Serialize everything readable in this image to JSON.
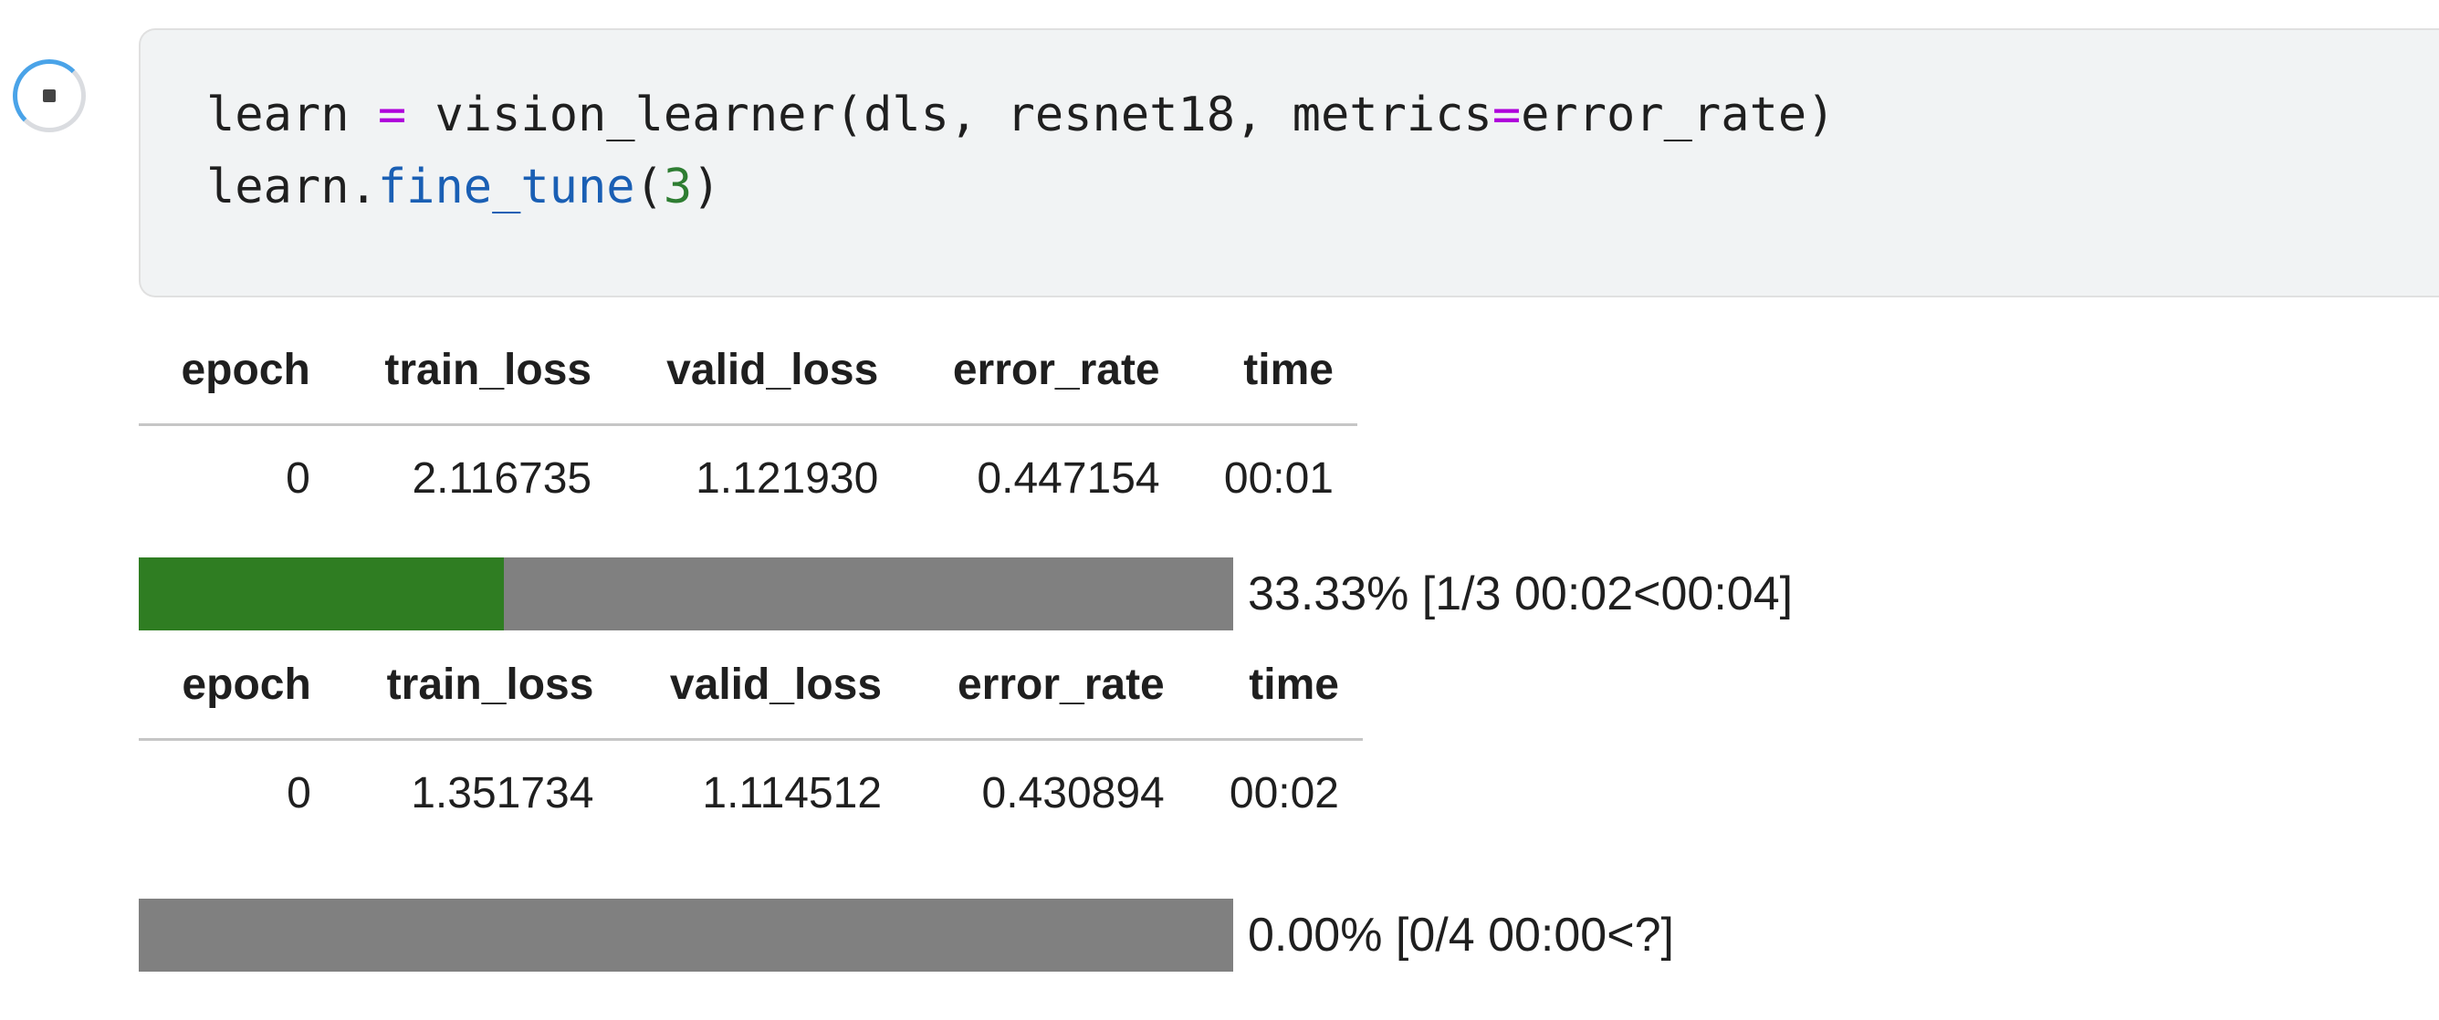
{
  "cell": {
    "run_state_icon": "stop-icon",
    "code_lines": [
      [
        {
          "t": "learn ",
          "c": "plain"
        },
        {
          "t": "=",
          "c": "op"
        },
        {
          "t": " vision_learner(dls, resnet18, metrics",
          "c": "plain"
        },
        {
          "t": "=",
          "c": "op"
        },
        {
          "t": "error_rate)",
          "c": "plain"
        }
      ],
      [
        {
          "t": "learn.",
          "c": "plain"
        },
        {
          "t": "fine_tune",
          "c": "fn"
        },
        {
          "t": "(",
          "c": "plain"
        },
        {
          "t": "3",
          "c": "num"
        },
        {
          "t": ")",
          "c": "plain"
        }
      ]
    ]
  },
  "output": {
    "table1": {
      "headers": [
        "epoch",
        "train_loss",
        "valid_loss",
        "error_rate",
        "time"
      ],
      "rows": [
        [
          "0",
          "2.116735",
          "1.121930",
          "0.447154",
          "00:01"
        ]
      ]
    },
    "progress1": {
      "fraction": 0.3333,
      "label": "33.33% [1/3 00:02<00:04]"
    },
    "table2": {
      "headers": [
        "epoch",
        "train_loss",
        "valid_loss",
        "error_rate",
        "time"
      ],
      "rows": [
        [
          "0",
          "1.351734",
          "1.114512",
          "0.430894",
          "00:02"
        ]
      ]
    },
    "progress2": {
      "fraction": 0.0,
      "label": "0.00% [0/4 00:00<?]"
    }
  },
  "colors": {
    "progress_fill": "#2f7d22",
    "progress_track": "#808080",
    "code_bg": "#f1f3f4",
    "keyword_op": "#af00db",
    "function": "#1a5fb4",
    "number": "#2e7d32"
  }
}
